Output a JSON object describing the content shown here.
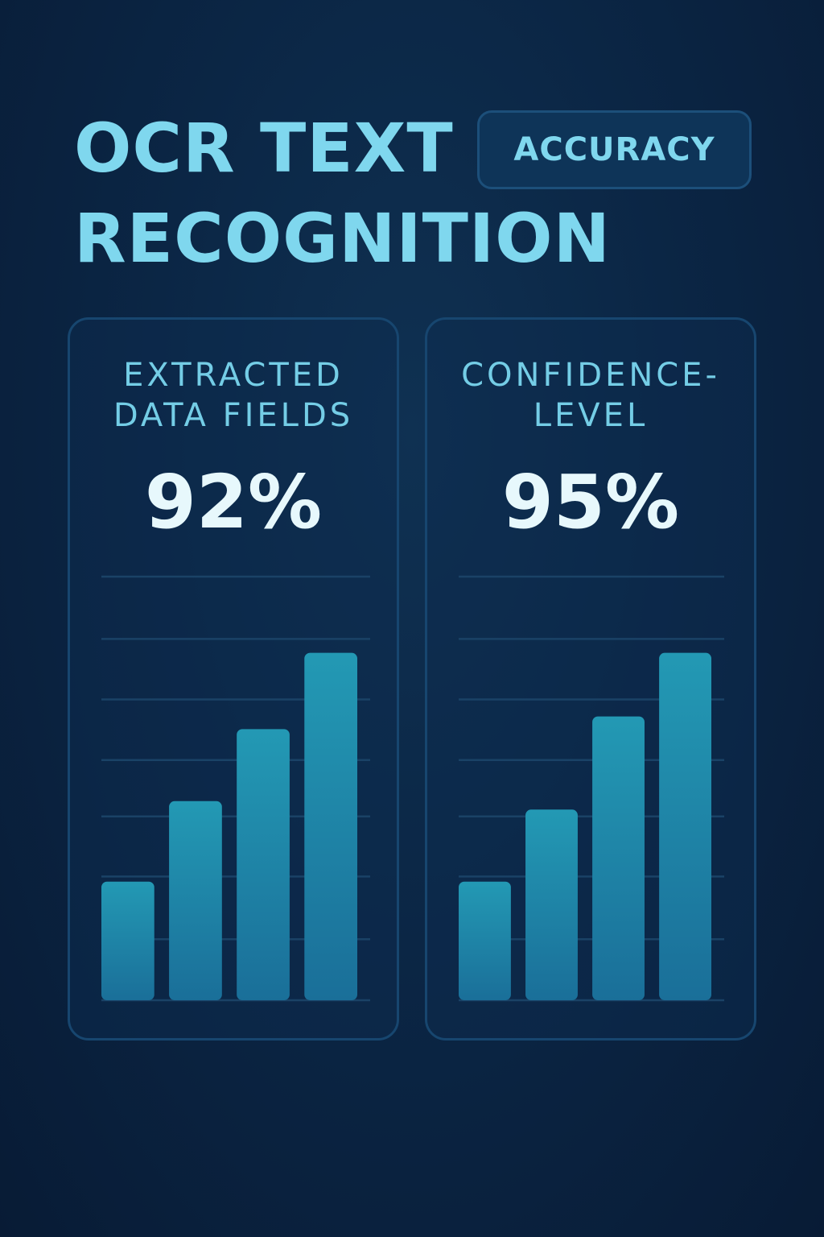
{
  "header": {
    "title_line1": "OCR TEXT",
    "title_line2": "RECOGNITION",
    "badge": "ACCURACY"
  },
  "cards": [
    {
      "label_line1": "EXTRACTED",
      "label_line2": "DATA FIELDS",
      "value": "92%"
    },
    {
      "label_line1": "CONFIDENCE-",
      "label_line2": "LEVEL",
      "value": "95%"
    }
  ],
  "colors": {
    "background": "#0b2645",
    "accent": "#7fd7ee",
    "bar_top": "#2399b4",
    "bar_bottom": "#1a6f99",
    "gridline": "#1a4266"
  },
  "chart_data": [
    {
      "type": "bar",
      "title": "EXTRACTED DATA FIELDS",
      "categories": [
        "",
        "",
        "",
        ""
      ],
      "values": [
        28,
        47,
        64,
        82
      ],
      "ylim": [
        0,
        100
      ],
      "grid": true
    },
    {
      "type": "bar",
      "title": "CONFIDENCE-LEVEL",
      "categories": [
        "",
        "",
        "",
        ""
      ],
      "values": [
        28,
        45,
        67,
        82
      ],
      "ylim": [
        0,
        100
      ],
      "grid": true
    }
  ]
}
